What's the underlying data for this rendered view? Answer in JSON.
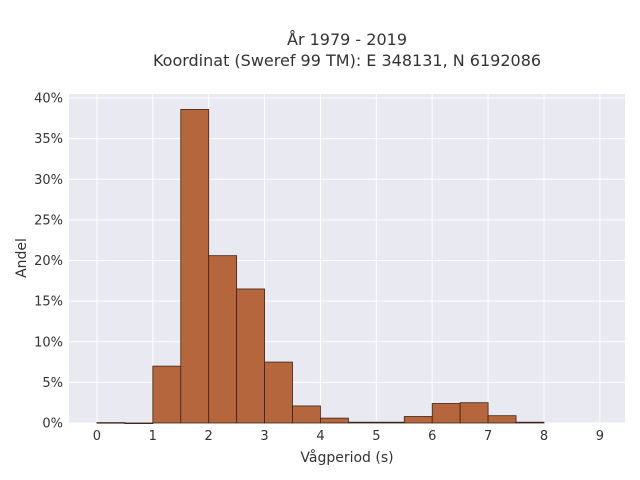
{
  "chart_data": {
    "type": "bar",
    "title": [
      "År 1979 - 2019",
      "Koordinat (Sweref 99 TM): E 348131, N 6192086"
    ],
    "xlabel": "Vågperiod (s)",
    "ylabel": "Andel",
    "bin_width": 0.5,
    "bins": [
      {
        "x0": 0.0,
        "value": 0.05
      },
      {
        "x0": 0.5,
        "value": 0.0
      },
      {
        "x0": 1.0,
        "value": 7.0
      },
      {
        "x0": 1.5,
        "value": 38.6
      },
      {
        "x0": 2.0,
        "value": 20.6
      },
      {
        "x0": 2.5,
        "value": 16.5
      },
      {
        "x0": 3.0,
        "value": 7.5
      },
      {
        "x0": 3.5,
        "value": 2.1
      },
      {
        "x0": 4.0,
        "value": 0.6
      },
      {
        "x0": 4.5,
        "value": 0.1
      },
      {
        "x0": 5.0,
        "value": 0.1
      },
      {
        "x0": 5.5,
        "value": 0.8
      },
      {
        "x0": 6.0,
        "value": 2.4
      },
      {
        "x0": 6.5,
        "value": 2.5
      },
      {
        "x0": 7.0,
        "value": 0.9
      },
      {
        "x0": 7.5,
        "value": 0.1
      }
    ],
    "xlim": [
      -0.5,
      9.45
    ],
    "ylim": [
      0,
      40.5
    ],
    "x_ticks": [
      0,
      1,
      2,
      3,
      4,
      5,
      6,
      7,
      8,
      9
    ],
    "x_tick_labels": [
      "0",
      "1",
      "2",
      "3",
      "4",
      "5",
      "6",
      "7",
      "8",
      "9"
    ],
    "y_ticks": [
      0,
      5,
      10,
      15,
      20,
      25,
      30,
      35,
      40
    ],
    "y_tick_labels": [
      "0%",
      "5%",
      "10%",
      "15%",
      "20%",
      "25%",
      "30%",
      "35%",
      "40%"
    ],
    "grid": true,
    "colors": {
      "bar_fill": "#b5663c",
      "bar_stroke": "#3d2418",
      "plot_bg": "#e9e9f1",
      "grid": "#ffffff",
      "text": "#333333"
    }
  }
}
